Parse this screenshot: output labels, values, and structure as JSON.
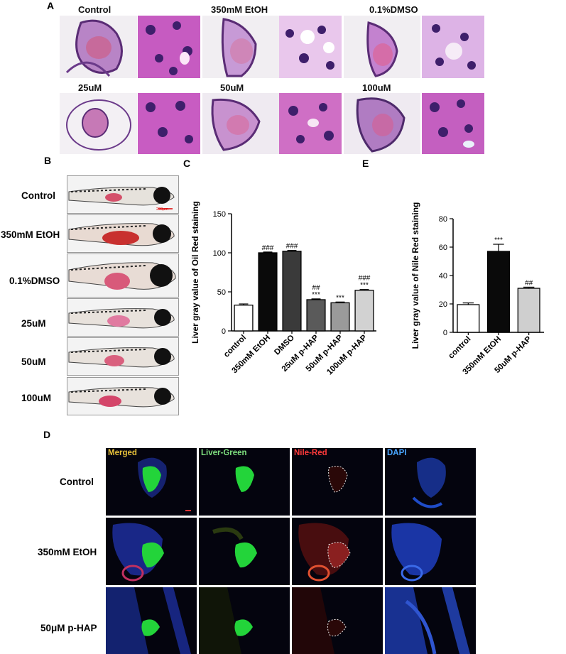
{
  "panels": {
    "A": "A",
    "B": "B",
    "C": "C",
    "D": "D",
    "E": "E"
  },
  "panelA": {
    "tiles": [
      {
        "label": "Control"
      },
      {
        "label": "350mM EtOH"
      },
      {
        "label": "0.1%DMSO"
      },
      {
        "label": "25uM"
      },
      {
        "label": "50uM"
      },
      {
        "label": "100uM"
      }
    ]
  },
  "panelB": {
    "rows": [
      "Control",
      "350mM EtOH",
      "0.1%DMSO",
      "25uM",
      "50uM",
      "100uM"
    ],
    "scalebar": "200μm"
  },
  "panelD": {
    "channels": [
      "Merged",
      "Liver-Green",
      "Nile-Red",
      "DAPI"
    ],
    "channel_colors": [
      "#e8c23a",
      "#7fe07f",
      "#ff3a3a",
      "#4aa6ff"
    ],
    "rows": [
      "Control",
      "350mM EtOH",
      "50μM p-HAP"
    ]
  },
  "chart_data": [
    {
      "type": "bar",
      "panel": "C",
      "categories": [
        "control",
        "350mM EtOH",
        "DMSO",
        "25uM p-HAP",
        "50uM p-HAP",
        "100uM p-HAP"
      ],
      "values": [
        33,
        100,
        102,
        40,
        36,
        52
      ],
      "errors": [
        1.5,
        1,
        1,
        1,
        1,
        1
      ],
      "annotations": [
        "",
        "###",
        "###",
        "##\n***",
        "***",
        "###\n***"
      ],
      "bar_colors": [
        "#ffffff",
        "#0a0a0a",
        "#3a3a3a",
        "#5a5a5a",
        "#9a9a9a",
        "#d2d2d2"
      ],
      "ylabel": "Liver gray value of Oil Red staining",
      "xlabel": "",
      "ylim": [
        0,
        150
      ],
      "yticks": [
        0,
        50,
        100,
        150
      ],
      "grid": false
    },
    {
      "type": "bar",
      "panel": "E",
      "categories": [
        "control",
        "350mM EtOH",
        "50uM p-HAP"
      ],
      "values": [
        19.5,
        57,
        31
      ],
      "errors": [
        1.2,
        5,
        0.8
      ],
      "annotations": [
        "",
        "***",
        "##"
      ],
      "bar_colors": [
        "#ffffff",
        "#0a0a0a",
        "#cfcfcf"
      ],
      "ylabel": "Liver gray value of Nile Red staining",
      "xlabel": "",
      "ylim": [
        0,
        80
      ],
      "yticks": [
        0,
        20,
        40,
        60,
        80
      ],
      "grid": false
    }
  ]
}
